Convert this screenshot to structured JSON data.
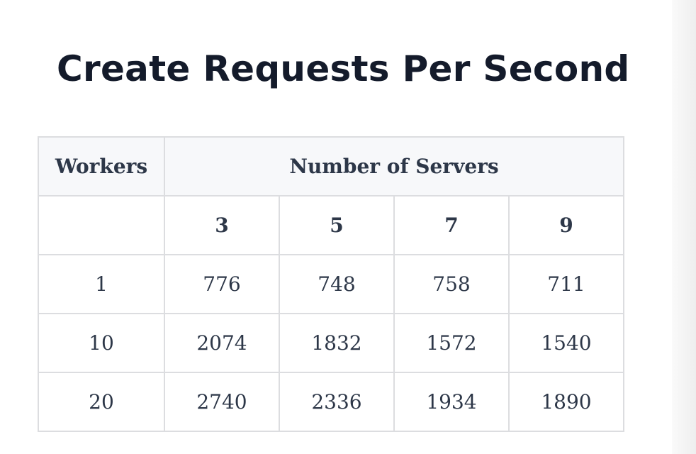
{
  "header": {
    "title": "Create Requests Per Second"
  },
  "table": {
    "header": [
      "Workers",
      "Number of Servers"
    ],
    "subheader": [
      3,
      5,
      7,
      9
    ],
    "rows": [
      [
        1,
        776,
        748,
        758,
        711
      ],
      [
        10,
        2074,
        1832,
        1572,
        1540
      ],
      [
        20,
        2740,
        2336,
        1934,
        1890
      ]
    ]
  }
}
